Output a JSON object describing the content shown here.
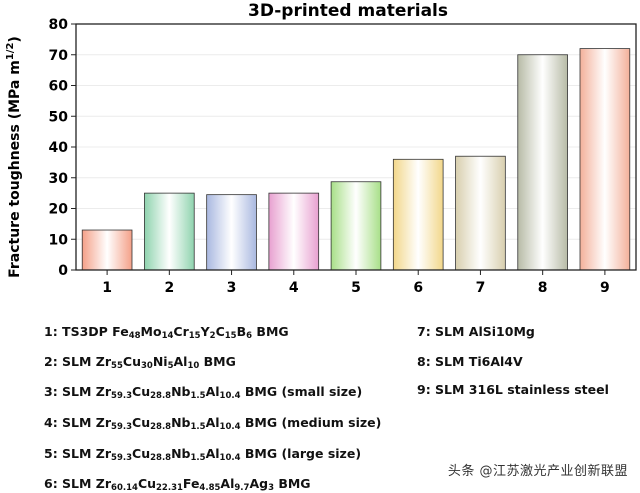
{
  "chart_data": {
    "type": "bar",
    "title": "3D-printed materials",
    "ylabel": "Fracture toughness (MPa m1/2)",
    "ylabel_parts": {
      "main": "Fracture toughness (MPa m",
      "sup": "1/2",
      "end": ")"
    },
    "ylim": [
      0,
      80
    ],
    "yticks": [
      0,
      10,
      20,
      30,
      40,
      50,
      60,
      70,
      80
    ],
    "grid": true,
    "categories": [
      "1",
      "2",
      "3",
      "4",
      "5",
      "6",
      "7",
      "8",
      "9"
    ],
    "values": [
      13,
      25,
      24.5,
      25,
      28.7,
      36,
      37,
      70,
      72
    ],
    "bar_colors": [
      "#f4a088",
      "#8fd3ae",
      "#a9b8e0",
      "#e8a0d0",
      "#a8df88",
      "#f2d78a",
      "#d8cfae",
      "#b7bba6",
      "#f3b09a"
    ]
  },
  "legend": {
    "col1": [
      [
        {
          "t": "1: TS3DP Fe"
        },
        {
          "s": "48"
        },
        {
          "t": "Mo"
        },
        {
          "s": "14"
        },
        {
          "t": "Cr"
        },
        {
          "s": "15"
        },
        {
          "t": "Y"
        },
        {
          "s": "2"
        },
        {
          "t": "C"
        },
        {
          "s": "15"
        },
        {
          "t": "B"
        },
        {
          "s": "6"
        },
        {
          "t": " BMG"
        }
      ],
      [
        {
          "t": "2: SLM Zr"
        },
        {
          "s": "55"
        },
        {
          "t": "Cu"
        },
        {
          "s": "30"
        },
        {
          "t": "Ni"
        },
        {
          "s": "5"
        },
        {
          "t": "Al"
        },
        {
          "s": "10"
        },
        {
          "t": " BMG"
        }
      ],
      [
        {
          "t": "3: SLM  Zr"
        },
        {
          "s": "59.3"
        },
        {
          "t": "Cu"
        },
        {
          "s": "28.8"
        },
        {
          "t": "Nb"
        },
        {
          "s": "1.5"
        },
        {
          "t": "Al"
        },
        {
          "s": "10.4"
        },
        {
          "t": " BMG (small size)"
        }
      ],
      [
        {
          "t": "4: SLM  Zr"
        },
        {
          "s": "59.3"
        },
        {
          "t": "Cu"
        },
        {
          "s": "28.8"
        },
        {
          "t": "Nb"
        },
        {
          "s": "1.5"
        },
        {
          "t": "Al"
        },
        {
          "s": "10.4"
        },
        {
          "t": " BMG (medium size)"
        }
      ],
      [
        {
          "t": "5: SLM  Zr"
        },
        {
          "s": "59.3"
        },
        {
          "t": "Cu"
        },
        {
          "s": "28.8"
        },
        {
          "t": "Nb"
        },
        {
          "s": "1.5"
        },
        {
          "t": "Al"
        },
        {
          "s": "10.4"
        },
        {
          "t": " BMG (large size)"
        }
      ],
      [
        {
          "t": "6: SLM  Zr"
        },
        {
          "s": "60.14"
        },
        {
          "t": "Cu"
        },
        {
          "s": "22.31"
        },
        {
          "t": "Fe"
        },
        {
          "s": "4.85"
        },
        {
          "t": "Al"
        },
        {
          "s": "9.7"
        },
        {
          "t": "Ag"
        },
        {
          "s": "3"
        },
        {
          "t": " BMG"
        }
      ]
    ],
    "col2": [
      [
        {
          "t": "7: SLM AlSi10Mg"
        }
      ],
      [
        {
          "t": "8: SLM Ti6Al4V"
        }
      ],
      [
        {
          "t": "9: SLM 316L stainless steel"
        }
      ]
    ]
  },
  "watermark": "头条 @江苏激光产业创新联盟"
}
